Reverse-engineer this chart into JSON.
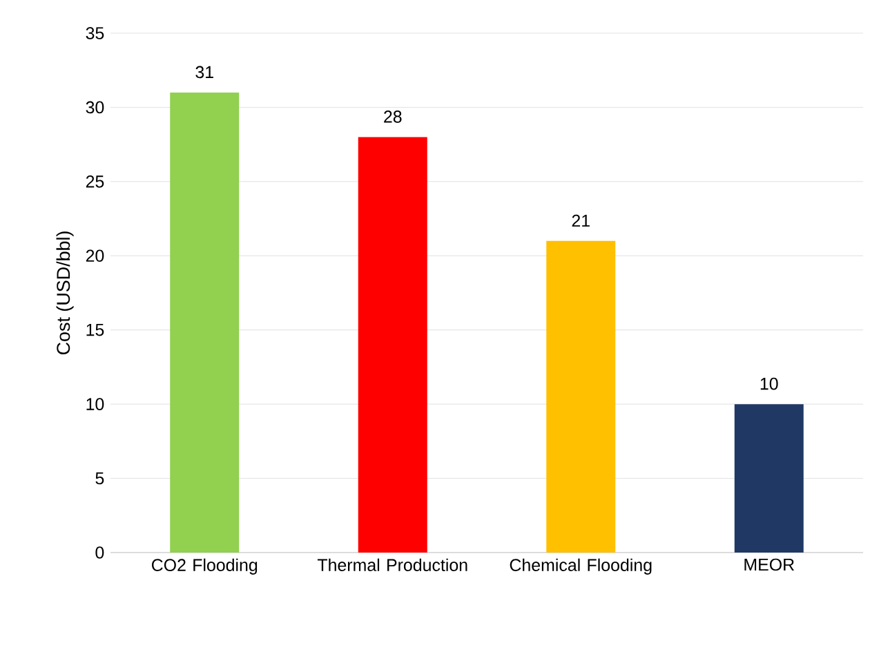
{
  "chart_data": {
    "type": "bar",
    "ylabel": "Cost (USD/bbl)",
    "categories": [
      "CO2 Flooding",
      "Thermal Production",
      "Chemical Flooding",
      "MEOR"
    ],
    "values": [
      31,
      28,
      21,
      10
    ],
    "colors": [
      "#92d050",
      "#ff0000",
      "#ffc000",
      "#1f3864"
    ],
    "ylim": [
      0,
      35
    ],
    "yticks": [
      0,
      5,
      10,
      15,
      20,
      25,
      30,
      35
    ],
    "grid": "y",
    "data_labels": true
  }
}
